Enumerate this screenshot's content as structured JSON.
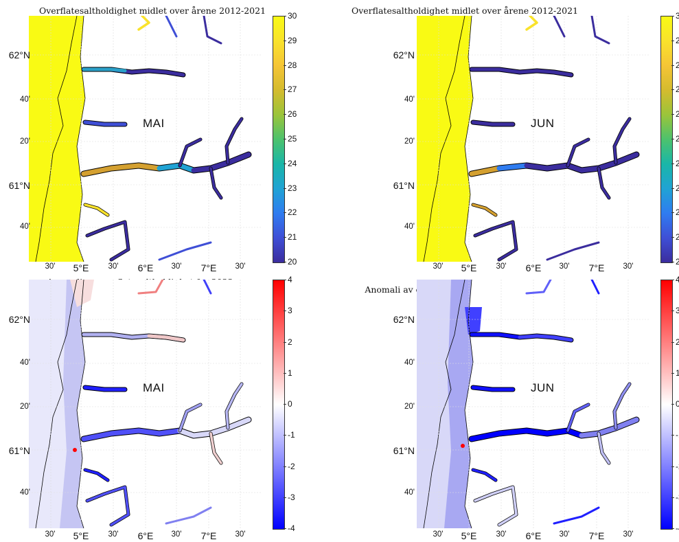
{
  "panels": [
    {
      "id": "p1",
      "title": "Overflatesaltholdighet midlet over årene 2012-2021",
      "month": "MAI",
      "scale": "salinity"
    },
    {
      "id": "p2",
      "title": "Overflatesaltholdighet midlet over årene 2012-2021",
      "month": "JUN",
      "scale": "salinity"
    },
    {
      "id": "p3",
      "title": "Anomali av overflatesaltholdighet for 2022",
      "month": "MAI",
      "scale": "anomaly"
    },
    {
      "id": "p4",
      "title": "Anomali av overflatesaltholdighet for 2022",
      "month": "JUN",
      "scale": "anomaly"
    }
  ],
  "lat_ticks": [
    "62°N",
    "40'",
    "20'",
    "61°N",
    "40'"
  ],
  "lon_ticks": [
    "30'",
    "5°E",
    "30'",
    "6°E",
    "30'",
    "7°E",
    "30'"
  ],
  "colorbars": {
    "salinity": {
      "ticks": [
        "30",
        "29",
        "28",
        "27",
        "26",
        "25",
        "24",
        "23",
        "22",
        "21",
        "20"
      ],
      "min": 20,
      "max": 30,
      "colors": [
        "#3b2d9e",
        "#3f4fd6",
        "#2f7cf0",
        "#20a3d4",
        "#1ab6a8",
        "#4cc26d",
        "#9bc43a",
        "#d4bb2e",
        "#f5c536",
        "#f9e22c",
        "#f9fa14"
      ]
    },
    "anomaly": {
      "ticks": [
        "4",
        "3",
        "2",
        "1",
        "0",
        "-1",
        "-2",
        "-3",
        "-4"
      ],
      "min": -4,
      "max": 4,
      "colors": [
        "#0000ff",
        "#8080ff",
        "#ffffff",
        "#ff8080",
        "#ff0000"
      ]
    }
  }
}
